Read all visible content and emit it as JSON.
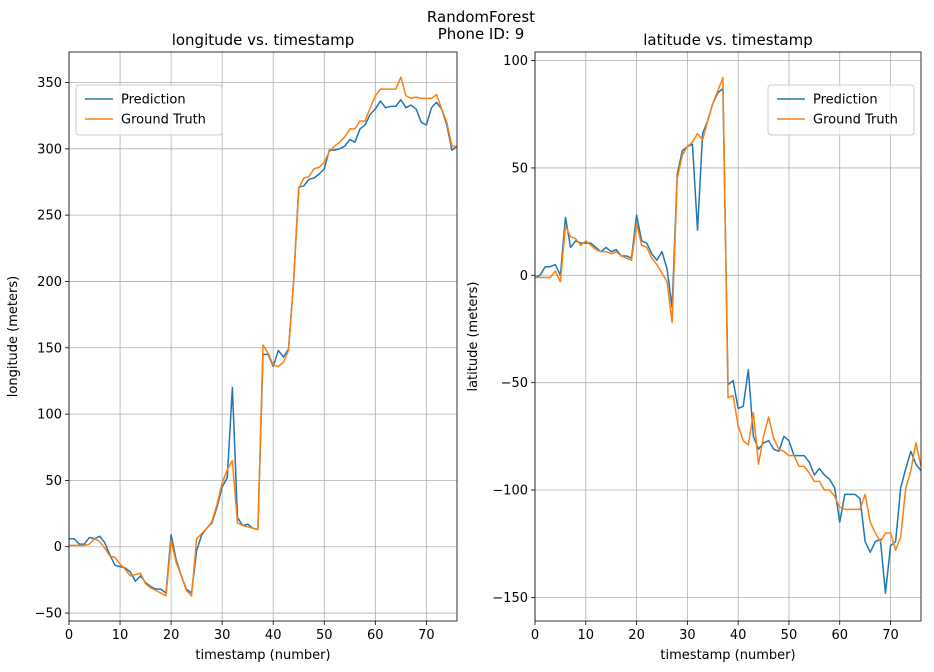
{
  "figure": {
    "title_line1": "RandomForest",
    "title_line2": "Phone ID: 9"
  },
  "colors": {
    "prediction": "#1f77b4",
    "ground_truth": "#ff7f0e",
    "grid": "#b0b0b0"
  },
  "chart_data": [
    {
      "type": "line",
      "title": "longitude vs. timestamp",
      "xlabel": "timestamp (number)",
      "ylabel": "longitude (meters)",
      "xlim": [
        0,
        76
      ],
      "ylim": [
        -56,
        373
      ],
      "xticks": [
        0,
        10,
        20,
        30,
        40,
        50,
        60,
        70
      ],
      "yticks": [
        -50,
        0,
        50,
        100,
        150,
        200,
        250,
        300,
        350
      ],
      "grid": true,
      "legend_position": "upper-left",
      "series": [
        {
          "name": "Prediction",
          "x": [
            0,
            1,
            2,
            3,
            4,
            5,
            6,
            7,
            8,
            9,
            10,
            11,
            12,
            13,
            14,
            15,
            16,
            17,
            18,
            19,
            20,
            21,
            22,
            23,
            24,
            25,
            26,
            27,
            28,
            29,
            30,
            31,
            32,
            33,
            34,
            35,
            36,
            37,
            38,
            39,
            40,
            41,
            42,
            43,
            44,
            45,
            46,
            47,
            48,
            49,
            50,
            51,
            52,
            53,
            54,
            55,
            56,
            57,
            58,
            59,
            60,
            61,
            62,
            63,
            64,
            65,
            66,
            67,
            68,
            69,
            70,
            71,
            72,
            73,
            74,
            75,
            76
          ],
          "y": [
            6,
            6,
            2,
            2,
            7,
            6,
            8,
            3,
            -6,
            -14,
            -15,
            -16,
            -19,
            -26,
            -22,
            -27,
            -30,
            -32,
            -32,
            -35,
            9,
            -10,
            -22,
            -32,
            -35,
            -3,
            9,
            14,
            18,
            30,
            45,
            52,
            120,
            22,
            16,
            17,
            14,
            13,
            145,
            145,
            136,
            148,
            143,
            149,
            200,
            271,
            272,
            277,
            278,
            281,
            285,
            299,
            299,
            300,
            302,
            307,
            305,
            315,
            318,
            326,
            330,
            336,
            331,
            332,
            332,
            337,
            331,
            333,
            330,
            320,
            318,
            331,
            335,
            330,
            318,
            299,
            302
          ]
        },
        {
          "name": "Ground Truth",
          "x": [
            0,
            1,
            2,
            3,
            4,
            5,
            6,
            7,
            8,
            9,
            10,
            11,
            12,
            13,
            14,
            15,
            16,
            17,
            18,
            19,
            20,
            21,
            22,
            23,
            24,
            25,
            26,
            27,
            28,
            29,
            30,
            31,
            32,
            33,
            34,
            35,
            36,
            37,
            38,
            39,
            40,
            41,
            42,
            43,
            44,
            45,
            46,
            47,
            48,
            49,
            50,
            51,
            52,
            53,
            54,
            55,
            56,
            57,
            58,
            59,
            60,
            61,
            62,
            63,
            64,
            65,
            66,
            67,
            68,
            69,
            70,
            71,
            72,
            73,
            74,
            75,
            76
          ],
          "y": [
            1,
            1,
            1,
            1,
            2,
            6,
            4,
            -1,
            -7,
            -8,
            -13,
            -17,
            -22,
            -21,
            -20,
            -28,
            -31,
            -33,
            -35,
            -37,
            5,
            -12,
            -22,
            -33,
            -37,
            6,
            10,
            14,
            19,
            32,
            48,
            58,
            65,
            18,
            16,
            15,
            14,
            13,
            152,
            146,
            137,
            136,
            139,
            148,
            200,
            270,
            278,
            279,
            285,
            286,
            290,
            298,
            302,
            305,
            309,
            315,
            315,
            321,
            321,
            331,
            340,
            345,
            345,
            345,
            345,
            354,
            340,
            338,
            339,
            338,
            338,
            338,
            341,
            330,
            320,
            302,
            302
          ]
        }
      ]
    },
    {
      "type": "line",
      "title": "latitude vs. timestamp",
      "xlabel": "timestamp (number)",
      "ylabel": "latitude (meters)",
      "xlim": [
        0,
        76
      ],
      "ylim": [
        -161,
        104
      ],
      "xticks": [
        0,
        10,
        20,
        30,
        40,
        50,
        60,
        70
      ],
      "yticks": [
        -150,
        -100,
        -50,
        0,
        50,
        100
      ],
      "grid": true,
      "legend_position": "upper-right",
      "series": [
        {
          "name": "Prediction",
          "x": [
            0,
            1,
            2,
            3,
            4,
            5,
            6,
            7,
            8,
            9,
            10,
            11,
            12,
            13,
            14,
            15,
            16,
            17,
            18,
            19,
            20,
            21,
            22,
            23,
            24,
            25,
            26,
            27,
            28,
            29,
            30,
            31,
            32,
            33,
            34,
            35,
            36,
            37,
            38,
            39,
            40,
            41,
            42,
            43,
            44,
            45,
            46,
            47,
            48,
            49,
            50,
            51,
            52,
            53,
            54,
            55,
            56,
            57,
            58,
            59,
            60,
            61,
            62,
            63,
            64,
            65,
            66,
            67,
            68,
            69,
            70,
            71,
            72,
            73,
            74,
            75,
            76
          ],
          "y": [
            -1,
            0,
            4,
            4,
            5,
            0,
            27,
            13,
            16,
            15,
            15,
            15,
            13,
            11,
            13,
            11,
            12,
            9,
            9,
            8,
            28,
            16,
            15,
            10,
            7,
            11,
            3,
            -15,
            47,
            58,
            60,
            61,
            21,
            66,
            72,
            80,
            85,
            87,
            -51,
            -49,
            -62,
            -61,
            -44,
            -75,
            -81,
            -78,
            -77,
            -81,
            -82,
            -75,
            -77,
            -84,
            -84,
            -84,
            -87,
            -93,
            -90,
            -93,
            -95,
            -99,
            -115,
            -102,
            -102,
            -102,
            -104,
            -124,
            -129,
            -124,
            -123,
            -148,
            -126,
            -124,
            -99,
            -90,
            -82,
            -88,
            -91
          ]
        },
        {
          "name": "Ground Truth",
          "x": [
            0,
            1,
            2,
            3,
            4,
            5,
            6,
            7,
            8,
            9,
            10,
            11,
            12,
            13,
            14,
            15,
            16,
            17,
            18,
            19,
            20,
            21,
            22,
            23,
            24,
            25,
            26,
            27,
            28,
            29,
            30,
            31,
            32,
            33,
            34,
            35,
            36,
            37,
            38,
            39,
            40,
            41,
            42,
            43,
            44,
            45,
            46,
            47,
            48,
            49,
            50,
            51,
            52,
            53,
            54,
            55,
            56,
            57,
            58,
            59,
            60,
            61,
            62,
            63,
            64,
            65,
            66,
            67,
            68,
            69,
            70,
            71,
            72,
            73,
            74,
            75,
            76
          ],
          "y": [
            -1,
            -1,
            -1,
            -1,
            2,
            -3,
            23,
            18,
            17,
            14,
            16,
            14,
            12,
            11,
            11,
            10,
            11,
            9,
            8,
            7,
            24,
            14,
            13,
            8,
            5,
            1,
            -3,
            -22,
            45,
            56,
            60,
            62,
            66,
            63,
            72,
            80,
            86,
            92,
            -57,
            -56,
            -70,
            -77,
            -79,
            -64,
            -88,
            -75,
            -66,
            -76,
            -81,
            -82,
            -84,
            -84,
            -89,
            -89,
            -92,
            -96,
            -96,
            -100,
            -100,
            -103,
            -108,
            -109,
            -109,
            -109,
            -109,
            -102,
            -115,
            -120,
            -124,
            -120,
            -120,
            -128,
            -122,
            -99,
            -91,
            -78,
            -89
          ]
        }
      ]
    }
  ]
}
